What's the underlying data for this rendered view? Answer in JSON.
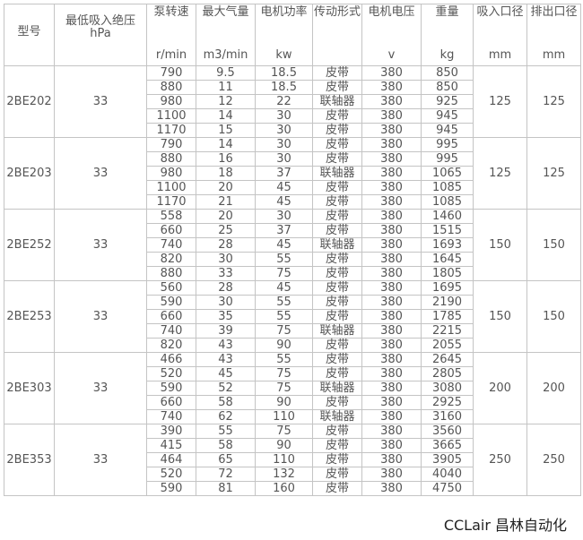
{
  "headers": [
    {
      "label": "型号",
      "unit": ""
    },
    {
      "label": "最低吸入绝压",
      "unit": "hPa"
    },
    {
      "label": "泵转速",
      "unit": "r/min"
    },
    {
      "label": "最大气量",
      "unit": "m3/min"
    },
    {
      "label": "电机功率",
      "unit": "kw"
    },
    {
      "label": "传动形式",
      "unit": ""
    },
    {
      "label": "电机电压",
      "unit": "v"
    },
    {
      "label": "重量",
      "unit": "kg"
    },
    {
      "label": "吸入口径",
      "unit": "mm"
    },
    {
      "label": "排出口径",
      "unit": "mm"
    }
  ],
  "groups": [
    {
      "model": "2BE202",
      "pressure": "33",
      "inlet": "125",
      "outlet": "125",
      "rows": [
        [
          "790",
          "9.5",
          "18.5",
          "皮带",
          "380",
          "850"
        ],
        [
          "880",
          "11",
          "18.5",
          "皮带",
          "380",
          "850"
        ],
        [
          "980",
          "12",
          "22",
          "联轴器",
          "380",
          "925"
        ],
        [
          "1100",
          "14",
          "30",
          "皮带",
          "380",
          "945"
        ],
        [
          "1170",
          "15",
          "30",
          "皮带",
          "380",
          "945"
        ]
      ]
    },
    {
      "model": "2BE203",
      "pressure": "33",
      "inlet": "125",
      "outlet": "125",
      "rows": [
        [
          "790",
          "14",
          "30",
          "皮带",
          "380",
          "995"
        ],
        [
          "880",
          "16",
          "30",
          "皮带",
          "380",
          "995"
        ],
        [
          "980",
          "18",
          "37",
          "联轴器",
          "380",
          "1065"
        ],
        [
          "1100",
          "20",
          "45",
          "皮带",
          "380",
          "1085"
        ],
        [
          "1170",
          "21",
          "45",
          "皮带",
          "380",
          "1085"
        ]
      ]
    },
    {
      "model": "2BE252",
      "pressure": "33",
      "inlet": "150",
      "outlet": "150",
      "rows": [
        [
          "558",
          "20",
          "30",
          "皮带",
          "380",
          "1460"
        ],
        [
          "660",
          "25",
          "37",
          "皮带",
          "380",
          "1515"
        ],
        [
          "740",
          "28",
          "45",
          "联轴器",
          "380",
          "1693"
        ],
        [
          "820",
          "30",
          "55",
          "皮带",
          "380",
          "1645"
        ],
        [
          "880",
          "33",
          "75",
          "皮带",
          "380",
          "1805"
        ]
      ]
    },
    {
      "model": "2BE253",
      "pressure": "33",
      "inlet": "150",
      "outlet": "150",
      "rows": [
        [
          "560",
          "28",
          "45",
          "皮带",
          "380",
          "1695"
        ],
        [
          "590",
          "30",
          "55",
          "皮带",
          "380",
          "2190"
        ],
        [
          "660",
          "35",
          "55",
          "皮带",
          "380",
          "1785"
        ],
        [
          "740",
          "39",
          "75",
          "联轴器",
          "380",
          "2215"
        ],
        [
          "820",
          "43",
          "90",
          "皮带",
          "380",
          "2055"
        ]
      ]
    },
    {
      "model": "2BE303",
      "pressure": "33",
      "inlet": "200",
      "outlet": "200",
      "rows": [
        [
          "466",
          "43",
          "55",
          "皮带",
          "380",
          "2645"
        ],
        [
          "520",
          "45",
          "75",
          "皮带",
          "380",
          "2805"
        ],
        [
          "590",
          "52",
          "75",
          "联轴器",
          "380",
          "3080"
        ],
        [
          "660",
          "58",
          "90",
          "皮带",
          "380",
          "2925"
        ],
        [
          "740",
          "62",
          "110",
          "联轴器",
          "380",
          "3160"
        ]
      ]
    },
    {
      "model": "2BE353",
      "pressure": "33",
      "inlet": "250",
      "outlet": "250",
      "rows": [
        [
          "390",
          "55",
          "75",
          "皮带",
          "380",
          "3560"
        ],
        [
          "415",
          "58",
          "90",
          "皮带",
          "380",
          "3665"
        ],
        [
          "464",
          "65",
          "110",
          "皮带",
          "380",
          "3905"
        ],
        [
          "520",
          "72",
          "132",
          "皮带",
          "380",
          "4040"
        ],
        [
          "590",
          "81",
          "160",
          "皮带",
          "380",
          "4750"
        ]
      ]
    }
  ],
  "watermark": "CCLair 昌林自动化"
}
